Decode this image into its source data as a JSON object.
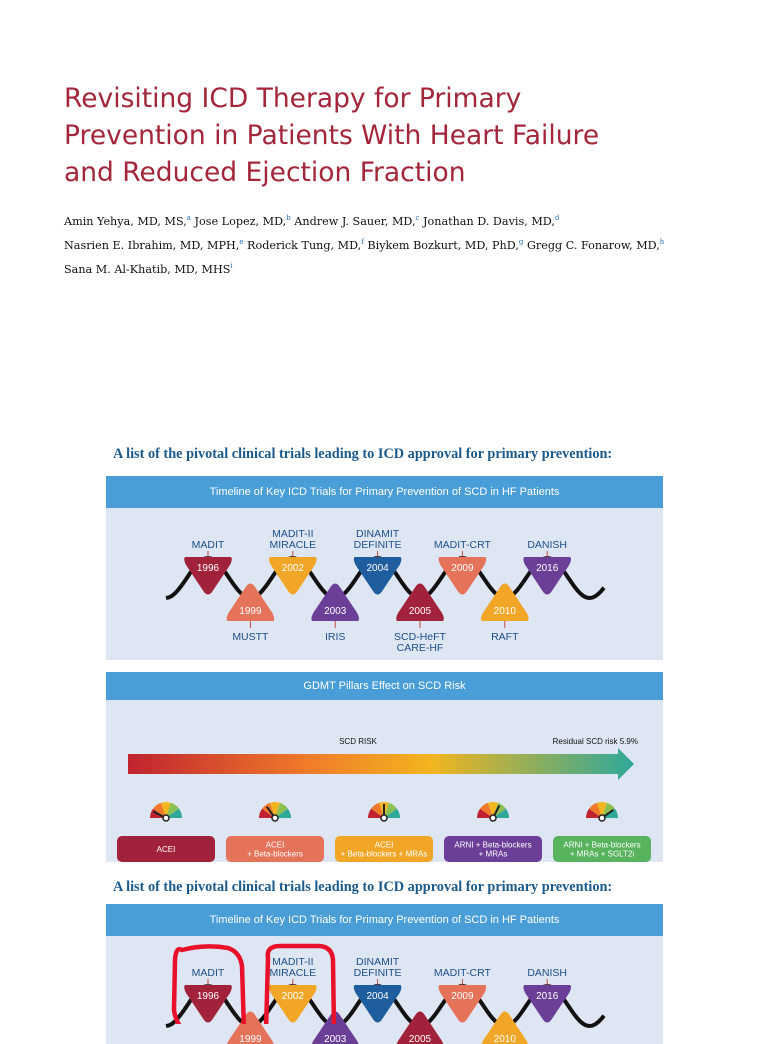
{
  "paper": {
    "title_lines": [
      "Revisiting ICD Therapy for Primary",
      "Prevention in Patients With Heart Failure",
      "and Reduced Ejection Fraction"
    ],
    "author_lines": [
      [
        {
          "name": "Amin Yehya, MD, MS,",
          "sup": "a"
        },
        {
          "name": "Jose Lopez, MD,",
          "sup": "b"
        },
        {
          "name": "Andrew J. Sauer, MD,",
          "sup": "c"
        },
        {
          "name": "Jonathan D. Davis, MD,",
          "sup": "d"
        }
      ],
      [
        {
          "name": "Nasrien E. Ibrahim, MD, MPH,",
          "sup": "e"
        },
        {
          "name": "Roderick Tung, MD,",
          "sup": "f"
        },
        {
          "name": "Biykem Bozkurt, MD, PhD,",
          "sup": "g"
        },
        {
          "name": "Gregg C. Fonarow, MD,",
          "sup": "h"
        }
      ],
      [
        {
          "name": "Sana M. Al-Khatib, MD, MHS",
          "sup": "i"
        }
      ]
    ]
  },
  "caption_1": "A list of the pivotal clinical trials leading to ICD approval for primary prevention:",
  "caption_2": "A list of the pivotal clinical trials leading to ICD approval for primary prevention:",
  "timeline": {
    "header": "Timeline of Key ICD Trials for Primary Prevention of SCD in HF Patients",
    "trials": [
      {
        "year": "1996",
        "label_lines": [
          "MADIT"
        ],
        "side": "top",
        "color": "#a3223b"
      },
      {
        "year": "1999",
        "label_lines": [
          "MUSTT"
        ],
        "side": "bottom",
        "color": "#e5735a"
      },
      {
        "year": "2002",
        "label_lines": [
          "MADIT-II",
          "MIRACLE"
        ],
        "side": "top",
        "color": "#f2a627"
      },
      {
        "year": "2003",
        "label_lines": [
          "IRIS"
        ],
        "side": "bottom",
        "color": "#6b3f98"
      },
      {
        "year": "2004",
        "label_lines": [
          "DINAMIT",
          "DEFINITE"
        ],
        "side": "top",
        "color": "#1f5e9e"
      },
      {
        "year": "2005",
        "label_lines": [
          "SCD-HeFT",
          "CARE-HF"
        ],
        "side": "bottom",
        "color": "#a3223b"
      },
      {
        "year": "2009",
        "label_lines": [
          "MADIT-CRT"
        ],
        "side": "top",
        "color": "#e5735a"
      },
      {
        "year": "2010",
        "label_lines": [
          "RAFT"
        ],
        "side": "bottom",
        "color": "#f2a627"
      },
      {
        "year": "2016",
        "label_lines": [
          "DANISH"
        ],
        "side": "top",
        "color": "#6b3f98"
      }
    ]
  },
  "gdmt": {
    "header": "GDMT Pillars Effect on SCD Risk",
    "scd_risk_label": "SCD RISK",
    "residual_label": "Residual SCD risk 5.9%",
    "pillars": [
      {
        "lines": [
          "ACEI"
        ],
        "color": "#a3223b",
        "gauge_level": 0.15
      },
      {
        "lines": [
          "ACEI",
          "+ Beta-blockers"
        ],
        "color": "#e5735a",
        "gauge_level": 0.3
      },
      {
        "lines": [
          "ACEI",
          "+ Beta-blockers + MRAs"
        ],
        "color": "#f2a627",
        "gauge_level": 0.5
      },
      {
        "lines": [
          "ARNI + Beta-blockers",
          "+ MRAs"
        ],
        "color": "#6b3f98",
        "gauge_level": 0.65
      },
      {
        "lines": [
          "ARNI + Beta-blockers",
          "+ MRAs + SGLT2i"
        ],
        "color": "#57b35d",
        "gauge_level": 0.8
      }
    ]
  },
  "colors": {
    "title": "#a3263a",
    "caption": "#1b5a8c",
    "panel_header": "#4a9ed8",
    "panel_bg": "#dfe6f3",
    "highlight_circle": "#e8102a"
  },
  "highlighted_trials": [
    "1996",
    "2002"
  ]
}
